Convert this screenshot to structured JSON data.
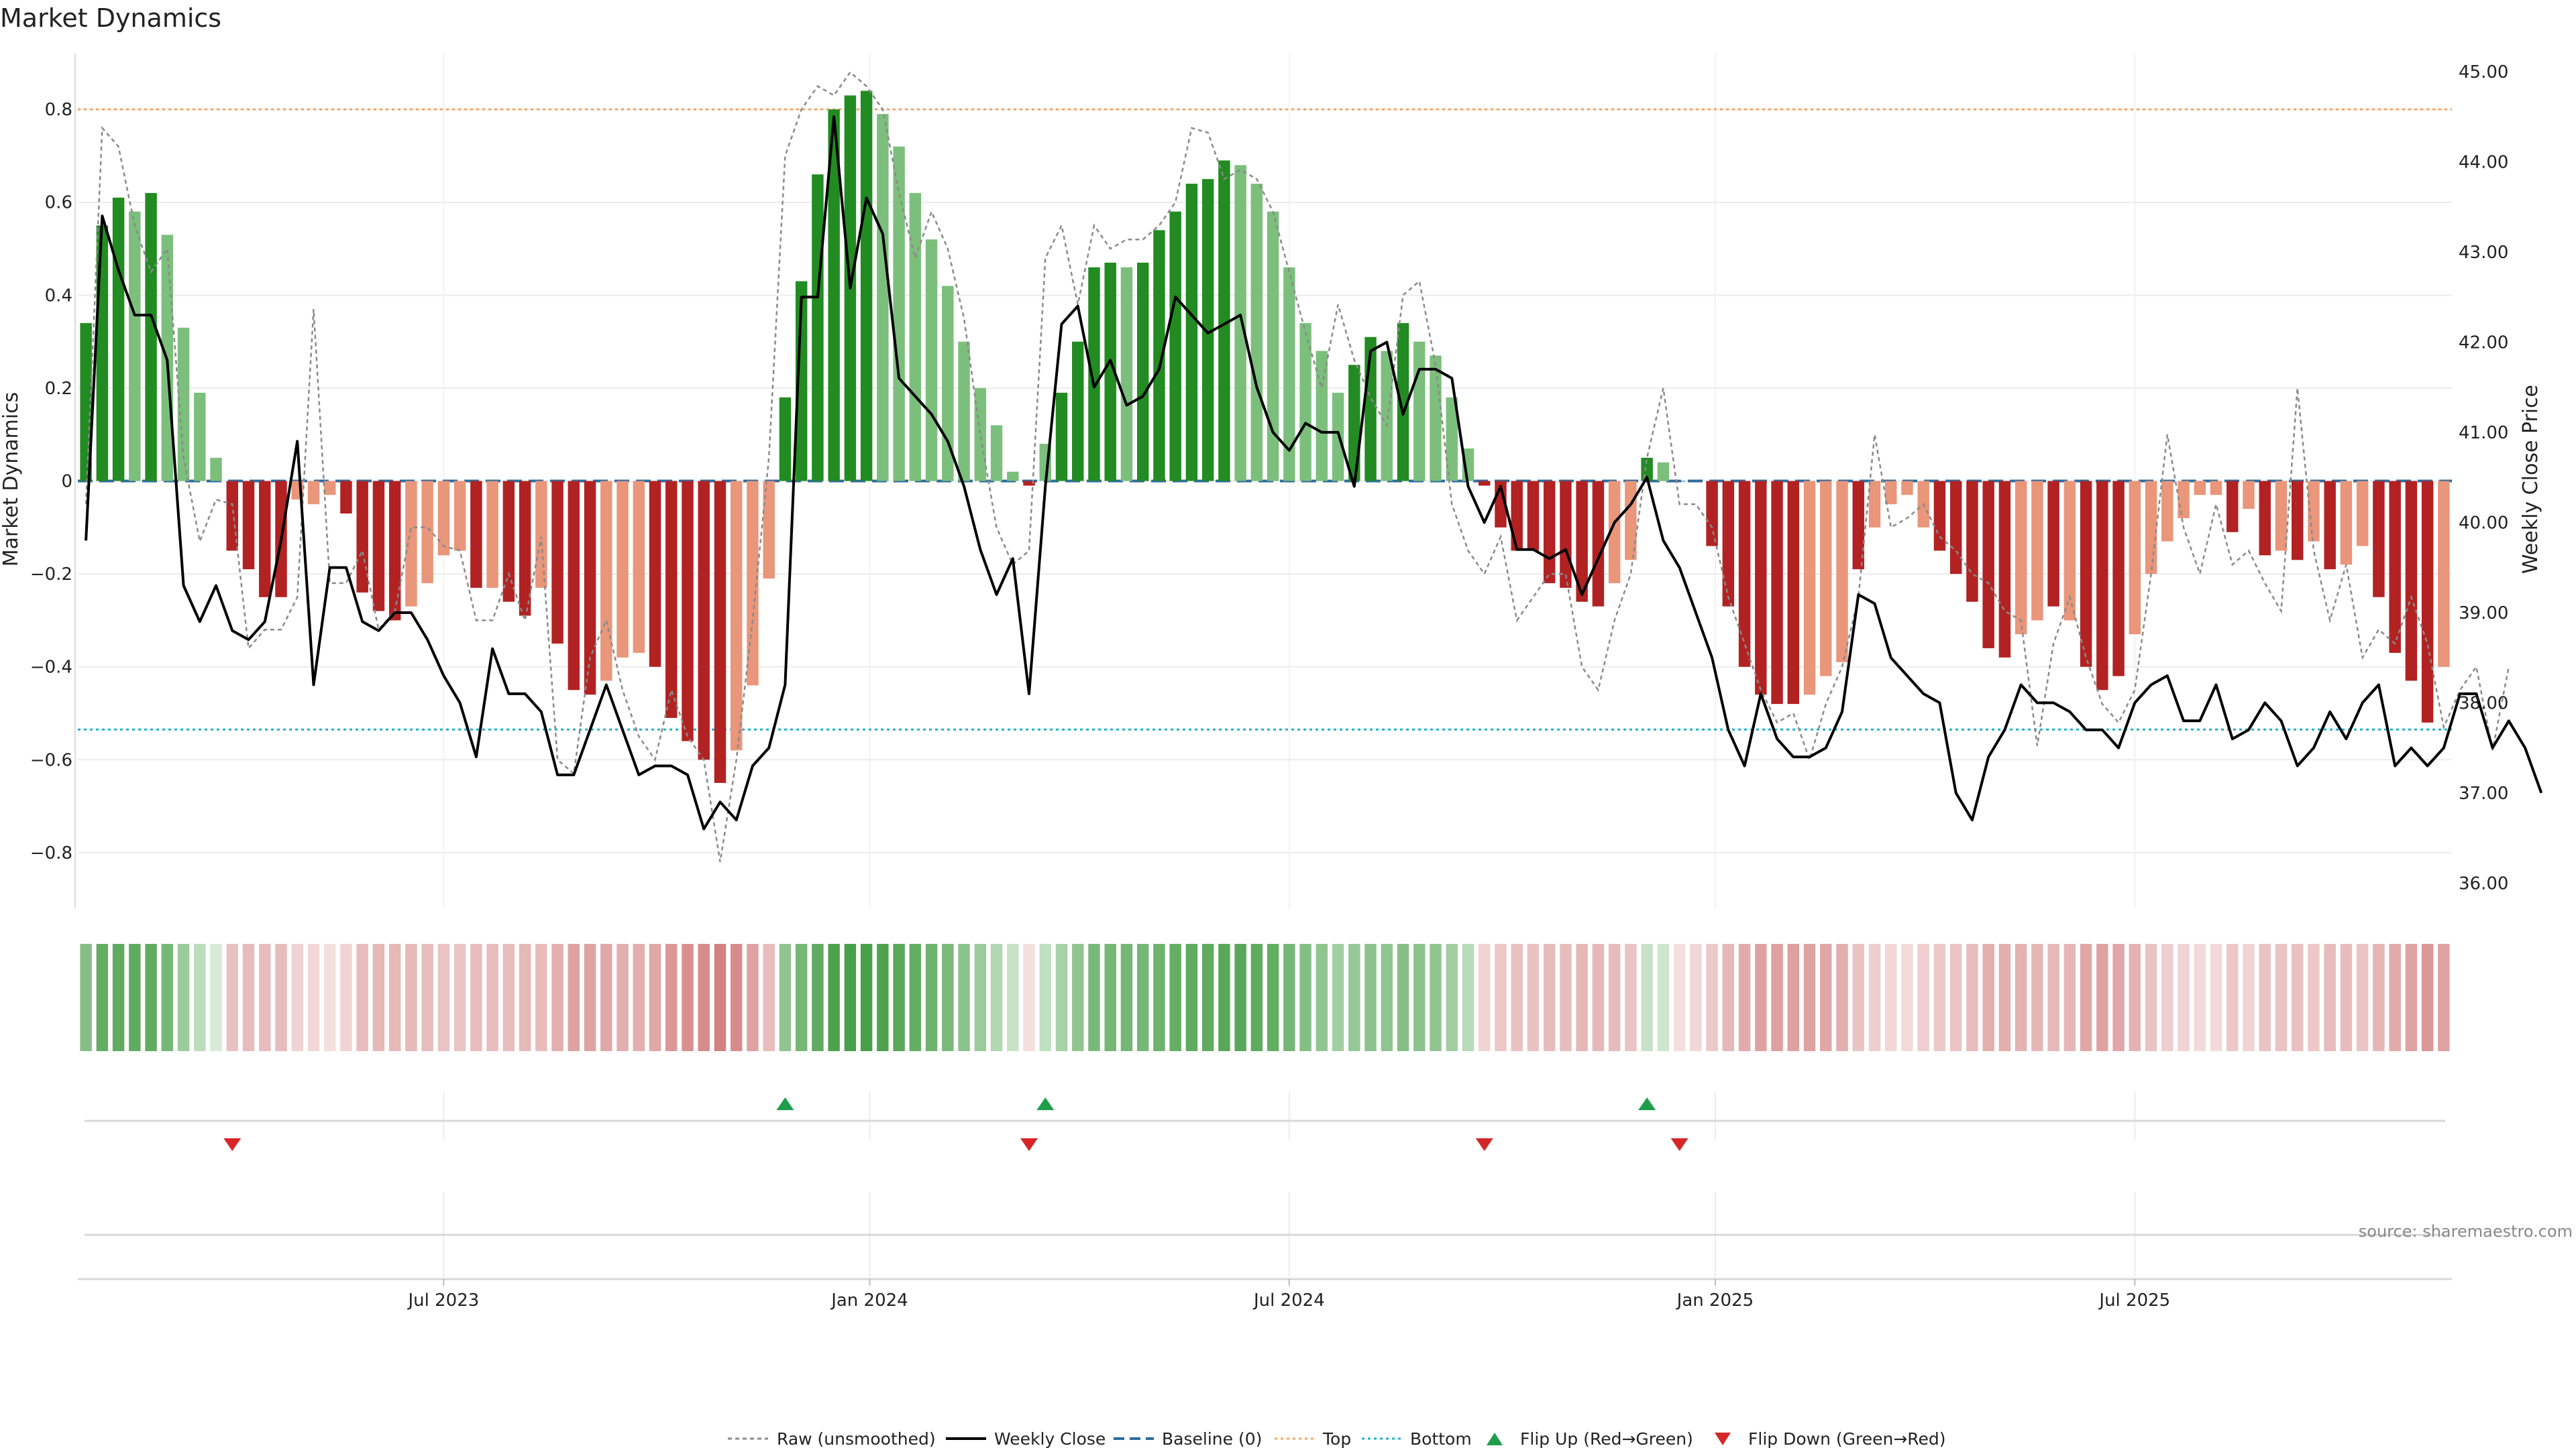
{
  "page": {
    "title": "Market Dynamics",
    "source": "source: sharemaestro.com"
  },
  "colors": {
    "green_strong": "#228B22",
    "green_light": "#7CBF7C",
    "red_strong": "#B22222",
    "red_light": "#E9967A",
    "top_line": "#F4A460",
    "bottom_line": "#20B2C8",
    "baseline": "#2E6B9E",
    "raw": "#8A8A8A",
    "close": "#000000",
    "flip_up": "#1E9E4A",
    "flip_down": "#D62728"
  },
  "chart_data": {
    "type": "bar",
    "title": "Market Dynamics",
    "ylabel": "Market Dynamics",
    "y2label": "Weekly Close Price",
    "ylim": [
      -0.92,
      0.92
    ],
    "y2lim": [
      35.72,
      45.2
    ],
    "yticks": [
      -0.8,
      -0.6,
      -0.4,
      -0.2,
      0,
      0.2,
      0.4,
      0.6,
      0.8
    ],
    "ytick_labels": [
      "−0.8",
      "−0.6",
      "−0.4",
      "−0.2",
      "0",
      "0.2",
      "0.4",
      "0.6",
      "0.8"
    ],
    "y2ticks": [
      36,
      37,
      38,
      39,
      40,
      41,
      42,
      43,
      44,
      45
    ],
    "y2tick_labels": [
      "36.00",
      "37.00",
      "38.00",
      "39.00",
      "40.00",
      "41.00",
      "42.00",
      "43.00",
      "44.00",
      "45.00"
    ],
    "xlabels": [
      "Jul 2023",
      "Jan 2024",
      "Jul 2024",
      "Jan 2025",
      "Jul 2025"
    ],
    "x_label_weeks": [
      22,
      48.2,
      74,
      100.2,
      126
    ],
    "top_level": 0.8,
    "bottom_level": -0.535,
    "baseline_level": 0,
    "grid": true,
    "series": [
      {
        "name": "Market Dynamics",
        "kind": "bar",
        "values": [
          0.34,
          0.55,
          0.61,
          0.58,
          0.62,
          0.53,
          0.33,
          0.19,
          0.05,
          -0.15,
          -0.19,
          -0.25,
          -0.25,
          -0.04,
          -0.05,
          -0.03,
          -0.07,
          -0.24,
          -0.28,
          -0.3,
          -0.27,
          -0.22,
          -0.16,
          -0.15,
          -0.23,
          -0.23,
          -0.26,
          -0.29,
          -0.23,
          -0.35,
          -0.45,
          -0.46,
          -0.43,
          -0.38,
          -0.37,
          -0.4,
          -0.51,
          -0.56,
          -0.6,
          -0.65,
          -0.58,
          -0.44,
          -0.21,
          0.18,
          0.43,
          0.66,
          0.8,
          0.83,
          0.84,
          0.79,
          0.72,
          0.62,
          0.52,
          0.42,
          0.3,
          0.2,
          0.12,
          0.02,
          -0.01,
          0.08,
          0.19,
          0.3,
          0.46,
          0.47,
          0.46,
          0.47,
          0.54,
          0.58,
          0.64,
          0.65,
          0.69,
          0.68,
          0.64,
          0.58,
          0.46,
          0.34,
          0.28,
          0.19,
          0.25,
          0.31,
          0.28,
          0.34,
          0.3,
          0.27,
          0.18,
          0.07,
          -0.01,
          -0.1,
          -0.15,
          -0.15,
          -0.22,
          -0.23,
          -0.26,
          -0.27,
          -0.22,
          -0.17,
          0.05,
          0.04,
          0,
          0,
          -0.14,
          -0.27,
          -0.4,
          -0.46,
          -0.48,
          -0.48,
          -0.46,
          -0.42,
          -0.39,
          -0.19,
          -0.1,
          -0.05,
          -0.03,
          -0.1,
          -0.15,
          -0.2,
          -0.26,
          -0.36,
          -0.38,
          -0.33,
          -0.3,
          -0.27,
          -0.3,
          -0.4,
          -0.45,
          -0.42,
          -0.33,
          -0.2,
          -0.13,
          -0.08,
          -0.03,
          -0.03,
          -0.11,
          -0.06,
          -0.16,
          -0.15,
          -0.17,
          -0.13,
          -0.19,
          -0.18,
          -0.14,
          -0.25,
          -0.37,
          -0.43,
          -0.52,
          -0.4
        ],
        "colors": [
          "G",
          "G",
          "G",
          "g",
          "G",
          "g",
          "g",
          "g",
          "g",
          "R",
          "R",
          "R",
          "R",
          "r",
          "r",
          "r",
          "R",
          "R",
          "R",
          "R",
          "r",
          "r",
          "r",
          "r",
          "R",
          "r",
          "R",
          "R",
          "r",
          "R",
          "R",
          "R",
          "r",
          "r",
          "r",
          "R",
          "R",
          "R",
          "R",
          "R",
          "r",
          "r",
          "r",
          "G",
          "G",
          "G",
          "G",
          "G",
          "G",
          "g",
          "g",
          "g",
          "g",
          "g",
          "g",
          "g",
          "g",
          "g",
          "R",
          "g",
          "G",
          "G",
          "G",
          "G",
          "g",
          "G",
          "G",
          "G",
          "G",
          "G",
          "G",
          "g",
          "g",
          "g",
          "g",
          "g",
          "g",
          "g",
          "G",
          "G",
          "g",
          "G",
          "g",
          "g",
          "g",
          "g",
          "R",
          "R",
          "R",
          "R",
          "R",
          "R",
          "R",
          "R",
          "r",
          "r",
          "G",
          "g",
          "b",
          "b",
          "R",
          "R",
          "R",
          "R",
          "R",
          "R",
          "r",
          "r",
          "r",
          "R",
          "r",
          "r",
          "r",
          "r",
          "R",
          "R",
          "R",
          "R",
          "R",
          "r",
          "r",
          "R",
          "r",
          "R",
          "R",
          "R",
          "r",
          "r",
          "r",
          "r",
          "r",
          "r",
          "R",
          "r",
          "R",
          "r",
          "R",
          "r",
          "R",
          "r",
          "r",
          "R",
          "R",
          "R",
          "R",
          "r"
        ]
      },
      {
        "name": "Raw (unsmoothed)",
        "kind": "line",
        "values": [
          -0.05,
          0.76,
          0.72,
          0.55,
          0.45,
          0.5,
          0.05,
          -0.13,
          -0.04,
          -0.05,
          -0.36,
          -0.32,
          -0.32,
          -0.25,
          0.37,
          -0.22,
          -0.22,
          -0.15,
          -0.32,
          -0.28,
          -0.1,
          -0.1,
          -0.14,
          -0.15,
          -0.3,
          -0.3,
          -0.2,
          -0.3,
          -0.12,
          -0.6,
          -0.63,
          -0.38,
          -0.3,
          -0.45,
          -0.55,
          -0.6,
          -0.45,
          -0.55,
          -0.6,
          -0.82,
          -0.6,
          -0.3,
          0.05,
          0.7,
          0.8,
          0.85,
          0.83,
          0.88,
          0.85,
          0.8,
          0.62,
          0.48,
          0.58,
          0.5,
          0.35,
          0.1,
          -0.1,
          -0.18,
          -0.15,
          0.48,
          0.55,
          0.38,
          0.55,
          0.5,
          0.52,
          0.52,
          0.55,
          0.6,
          0.76,
          0.75,
          0.65,
          0.67,
          0.65,
          0.58,
          0.45,
          0.32,
          0.2,
          0.38,
          0.26,
          0.18,
          0.12,
          0.4,
          0.43,
          0.25,
          -0.05,
          -0.15,
          -0.2,
          -0.12,
          -0.3,
          -0.25,
          -0.2,
          -0.2,
          -0.4,
          -0.45,
          -0.3,
          -0.2,
          0.05,
          0.2,
          -0.05,
          -0.05,
          -0.1,
          -0.25,
          -0.35,
          -0.45,
          -0.52,
          -0.5,
          -0.6,
          -0.48,
          -0.4,
          -0.25,
          0.1,
          -0.1,
          -0.08,
          -0.05,
          -0.12,
          -0.15,
          -0.2,
          -0.22,
          -0.28,
          -0.3,
          -0.57,
          -0.35,
          -0.25,
          -0.38,
          -0.48,
          -0.52,
          -0.45,
          -0.2,
          0.1,
          -0.1,
          -0.2,
          -0.05,
          -0.18,
          -0.15,
          -0.22,
          -0.28,
          0.2,
          -0.15,
          -0.3,
          -0.18,
          -0.38,
          -0.32,
          -0.35,
          -0.25,
          -0.35,
          -0.53,
          -0.45,
          -0.4,
          -0.58,
          -0.4
        ]
      },
      {
        "name": "Weekly Close",
        "kind": "line",
        "axis": "right",
        "values": [
          39.8,
          43.4,
          42.8,
          42.3,
          42.3,
          41.8,
          39.3,
          38.9,
          39.3,
          38.8,
          38.7,
          38.9,
          39.8,
          40.9,
          38.2,
          39.5,
          39.5,
          38.9,
          38.8,
          39.0,
          39.0,
          38.7,
          38.3,
          38.0,
          37.4,
          38.6,
          38.1,
          38.1,
          37.9,
          37.2,
          37.2,
          37.7,
          38.2,
          37.7,
          37.2,
          37.3,
          37.3,
          37.2,
          36.6,
          36.9,
          36.7,
          37.3,
          37.5,
          38.2,
          42.5,
          42.5,
          44.5,
          42.6,
          43.6,
          43.2,
          41.6,
          41.4,
          41.2,
          40.9,
          40.4,
          39.7,
          39.2,
          39.6,
          38.1,
          40.4,
          42.2,
          42.4,
          41.5,
          41.8,
          41.3,
          41.4,
          41.7,
          42.5,
          42.3,
          42.1,
          42.2,
          42.3,
          41.5,
          41.0,
          40.8,
          41.1,
          41.0,
          41.0,
          40.4,
          41.9,
          42.0,
          41.2,
          41.7,
          41.7,
          41.6,
          40.4,
          40.0,
          40.4,
          39.7,
          39.7,
          39.6,
          39.7,
          39.2,
          39.6,
          40.0,
          40.2,
          40.5,
          39.8,
          39.5,
          39.0,
          38.5,
          37.7,
          37.3,
          38.1,
          37.6,
          37.4,
          37.4,
          37.5,
          37.9,
          39.2,
          39.1,
          38.5,
          38.3,
          38.1,
          38.0,
          37.0,
          36.7,
          37.4,
          37.7,
          38.2,
          38.0,
          38.0,
          37.9,
          37.7,
          37.7,
          37.5,
          38.0,
          38.2,
          38.3,
          37.8,
          37.8,
          38.2,
          37.6,
          37.7,
          38.0,
          37.8,
          37.3,
          37.5,
          37.9,
          37.6,
          38.0,
          38.2,
          37.3,
          37.5,
          37.3,
          37.5,
          38.1,
          38.1,
          37.5,
          37.8,
          37.5,
          37.0
        ]
      }
    ],
    "heat_strip": [
      {
        "c": "G",
        "a": 0.55
      },
      {
        "c": "G",
        "a": 0.7
      },
      {
        "c": "G",
        "a": 0.72
      },
      {
        "c": "G",
        "a": 0.72
      },
      {
        "c": "G",
        "a": 0.72
      },
      {
        "c": "G",
        "a": 0.62
      },
      {
        "c": "G",
        "a": 0.45
      },
      {
        "c": "G",
        "a": 0.3
      },
      {
        "c": "G",
        "a": 0.18
      },
      {
        "c": "R",
        "a": 0.28
      },
      {
        "c": "R",
        "a": 0.3
      },
      {
        "c": "R",
        "a": 0.3
      },
      {
        "c": "R",
        "a": 0.3
      },
      {
        "c": "R",
        "a": 0.2
      },
      {
        "c": "R",
        "a": 0.18
      },
      {
        "c": "R",
        "a": 0.15
      },
      {
        "c": "R",
        "a": 0.2
      },
      {
        "c": "R",
        "a": 0.3
      },
      {
        "c": "R",
        "a": 0.32
      },
      {
        "c": "R",
        "a": 0.32
      },
      {
        "c": "R",
        "a": 0.32
      },
      {
        "c": "R",
        "a": 0.3
      },
      {
        "c": "R",
        "a": 0.27
      },
      {
        "c": "R",
        "a": 0.27
      },
      {
        "c": "R",
        "a": 0.3
      },
      {
        "c": "R",
        "a": 0.3
      },
      {
        "c": "R",
        "a": 0.3
      },
      {
        "c": "R",
        "a": 0.32
      },
      {
        "c": "R",
        "a": 0.3
      },
      {
        "c": "R",
        "a": 0.36
      },
      {
        "c": "R",
        "a": 0.42
      },
      {
        "c": "R",
        "a": 0.42
      },
      {
        "c": "R",
        "a": 0.4
      },
      {
        "c": "R",
        "a": 0.37
      },
      {
        "c": "R",
        "a": 0.37
      },
      {
        "c": "R",
        "a": 0.4
      },
      {
        "c": "R",
        "a": 0.47
      },
      {
        "c": "R",
        "a": 0.5
      },
      {
        "c": "R",
        "a": 0.52
      },
      {
        "c": "R",
        "a": 0.57
      },
      {
        "c": "R",
        "a": 0.52
      },
      {
        "c": "R",
        "a": 0.42
      },
      {
        "c": "R",
        "a": 0.3
      },
      {
        "c": "G",
        "a": 0.5
      },
      {
        "c": "G",
        "a": 0.62
      },
      {
        "c": "G",
        "a": 0.72
      },
      {
        "c": "G",
        "a": 0.8
      },
      {
        "c": "G",
        "a": 0.82
      },
      {
        "c": "G",
        "a": 0.82
      },
      {
        "c": "G",
        "a": 0.8
      },
      {
        "c": "G",
        "a": 0.75
      },
      {
        "c": "G",
        "a": 0.7
      },
      {
        "c": "G",
        "a": 0.65
      },
      {
        "c": "G",
        "a": 0.6
      },
      {
        "c": "G",
        "a": 0.52
      },
      {
        "c": "G",
        "a": 0.45
      },
      {
        "c": "G",
        "a": 0.35
      },
      {
        "c": "G",
        "a": 0.25
      },
      {
        "c": "R",
        "a": 0.15
      },
      {
        "c": "G",
        "a": 0.28
      },
      {
        "c": "G",
        "a": 0.4
      },
      {
        "c": "G",
        "a": 0.5
      },
      {
        "c": "G",
        "a": 0.6
      },
      {
        "c": "G",
        "a": 0.62
      },
      {
        "c": "G",
        "a": 0.62
      },
      {
        "c": "G",
        "a": 0.62
      },
      {
        "c": "G",
        "a": 0.66
      },
      {
        "c": "G",
        "a": 0.7
      },
      {
        "c": "G",
        "a": 0.72
      },
      {
        "c": "G",
        "a": 0.72
      },
      {
        "c": "G",
        "a": 0.75
      },
      {
        "c": "G",
        "a": 0.75
      },
      {
        "c": "G",
        "a": 0.72
      },
      {
        "c": "G",
        "a": 0.7
      },
      {
        "c": "G",
        "a": 0.62
      },
      {
        "c": "G",
        "a": 0.55
      },
      {
        "c": "G",
        "a": 0.5
      },
      {
        "c": "G",
        "a": 0.42
      },
      {
        "c": "G",
        "a": 0.47
      },
      {
        "c": "G",
        "a": 0.52
      },
      {
        "c": "G",
        "a": 0.5
      },
      {
        "c": "G",
        "a": 0.55
      },
      {
        "c": "G",
        "a": 0.52
      },
      {
        "c": "G",
        "a": 0.5
      },
      {
        "c": "G",
        "a": 0.42
      },
      {
        "c": "G",
        "a": 0.32
      },
      {
        "c": "R",
        "a": 0.2
      },
      {
        "c": "R",
        "a": 0.25
      },
      {
        "c": "R",
        "a": 0.28
      },
      {
        "c": "R",
        "a": 0.28
      },
      {
        "c": "R",
        "a": 0.3
      },
      {
        "c": "R",
        "a": 0.3
      },
      {
        "c": "R",
        "a": 0.32
      },
      {
        "c": "R",
        "a": 0.32
      },
      {
        "c": "R",
        "a": 0.3
      },
      {
        "c": "R",
        "a": 0.27
      },
      {
        "c": "G",
        "a": 0.25
      },
      {
        "c": "G",
        "a": 0.22
      },
      {
        "c": "R",
        "a": 0.15
      },
      {
        "c": "R",
        "a": 0.18
      },
      {
        "c": "R",
        "a": 0.25
      },
      {
        "c": "R",
        "a": 0.32
      },
      {
        "c": "R",
        "a": 0.38
      },
      {
        "c": "R",
        "a": 0.42
      },
      {
        "c": "R",
        "a": 0.43
      },
      {
        "c": "R",
        "a": 0.43
      },
      {
        "c": "R",
        "a": 0.42
      },
      {
        "c": "R",
        "a": 0.4
      },
      {
        "c": "R",
        "a": 0.37
      },
      {
        "c": "R",
        "a": 0.27
      },
      {
        "c": "R",
        "a": 0.22
      },
      {
        "c": "R",
        "a": 0.18
      },
      {
        "c": "R",
        "a": 0.17
      },
      {
        "c": "R",
        "a": 0.22
      },
      {
        "c": "R",
        "a": 0.25
      },
      {
        "c": "R",
        "a": 0.27
      },
      {
        "c": "R",
        "a": 0.3
      },
      {
        "c": "R",
        "a": 0.36
      },
      {
        "c": "R",
        "a": 0.37
      },
      {
        "c": "R",
        "a": 0.35
      },
      {
        "c": "R",
        "a": 0.33
      },
      {
        "c": "R",
        "a": 0.32
      },
      {
        "c": "R",
        "a": 0.33
      },
      {
        "c": "R",
        "a": 0.4
      },
      {
        "c": "R",
        "a": 0.42
      },
      {
        "c": "R",
        "a": 0.4
      },
      {
        "c": "R",
        "a": 0.35
      },
      {
        "c": "R",
        "a": 0.27
      },
      {
        "c": "R",
        "a": 0.22
      },
      {
        "c": "R",
        "a": 0.2
      },
      {
        "c": "R",
        "a": 0.17
      },
      {
        "c": "R",
        "a": 0.17
      },
      {
        "c": "R",
        "a": 0.25
      },
      {
        "c": "R",
        "a": 0.2
      },
      {
        "c": "R",
        "a": 0.27
      },
      {
        "c": "R",
        "a": 0.27
      },
      {
        "c": "R",
        "a": 0.28
      },
      {
        "c": "R",
        "a": 0.25
      },
      {
        "c": "R",
        "a": 0.3
      },
      {
        "c": "R",
        "a": 0.3
      },
      {
        "c": "R",
        "a": 0.27
      },
      {
        "c": "R",
        "a": 0.33
      },
      {
        "c": "R",
        "a": 0.38
      },
      {
        "c": "R",
        "a": 0.42
      },
      {
        "c": "R",
        "a": 0.47
      },
      {
        "c": "R",
        "a": 0.42
      }
    ],
    "flip_up_weeks": [
      43,
      59,
      96
    ],
    "flip_down_weeks": [
      9,
      58,
      86,
      98
    ]
  },
  "legend": {
    "raw": "Raw (unsmoothed)",
    "close": "Weekly Close",
    "baseline": "Baseline (0)",
    "top": "Top",
    "bottom": "Bottom",
    "flip_up": "Flip Up (Red→Green)",
    "flip_down": "Flip Down (Green→Red)"
  }
}
